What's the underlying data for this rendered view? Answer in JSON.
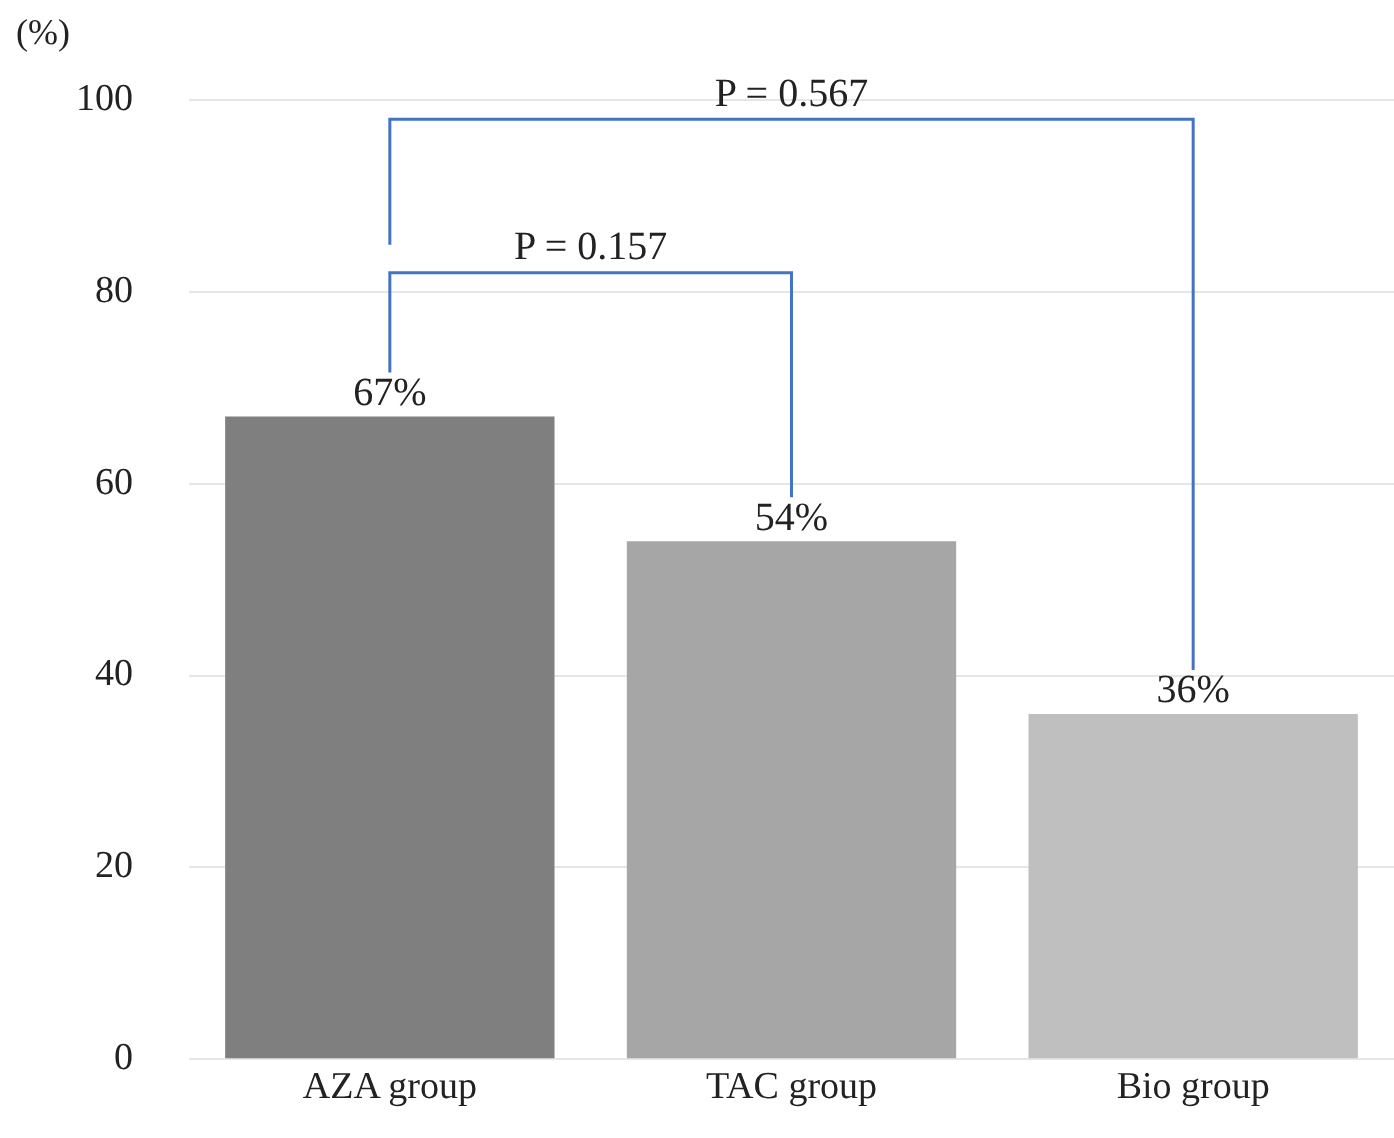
{
  "chart_data": {
    "type": "bar",
    "ylabel": "(%)",
    "categories": [
      "AZA group",
      "TAC group",
      "Bio group"
    ],
    "values": [
      67,
      54,
      36
    ],
    "colors": [
      "#7f7f7f",
      "#a6a6a6",
      "#bfbfbf"
    ],
    "value_labels": [
      "67%",
      "54%",
      "36%"
    ],
    "ylim": [
      0,
      100
    ],
    "yticks": [
      0,
      20,
      40,
      60,
      80,
      100
    ],
    "grid": "y",
    "annotations": [
      "P = 0.157",
      "P = 0.567"
    ]
  }
}
